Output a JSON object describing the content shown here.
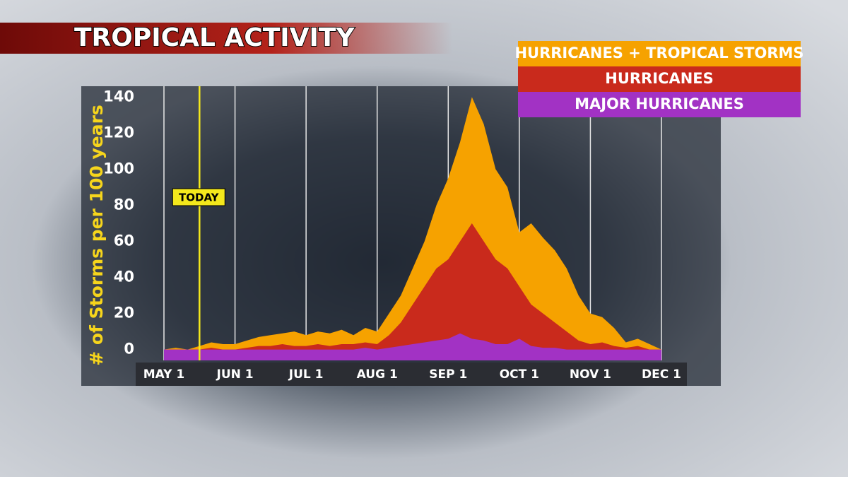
{
  "chart_data": {
    "type": "area",
    "title": "TROPICAL ACTIVITY",
    "y_label": "# of Storms per 100 years",
    "annotation": "TODAY",
    "categories": [
      "MAY 1",
      null,
      null,
      null,
      null,
      null,
      "JUN 1",
      null,
      null,
      null,
      null,
      null,
      "JUL 1",
      null,
      null,
      null,
      null,
      null,
      "AUG 1",
      null,
      null,
      null,
      null,
      null,
      "SEP 1",
      null,
      null,
      null,
      null,
      null,
      "OCT 1",
      null,
      null,
      null,
      null,
      null,
      "NOV 1",
      null,
      null,
      null,
      null,
      null,
      "DEC 1"
    ],
    "series": [
      {
        "name": "HURRICANES + TROPICAL STORMS",
        "color": "#f6a200",
        "values": [
          0,
          1,
          0,
          2,
          4,
          3,
          3,
          5,
          7,
          8,
          9,
          10,
          8,
          10,
          9,
          11,
          8,
          12,
          10,
          20,
          30,
          45,
          60,
          80,
          95,
          115,
          140,
          125,
          100,
          90,
          65,
          70,
          62,
          55,
          45,
          30,
          20,
          18,
          12,
          4,
          6,
          3,
          0
        ]
      },
      {
        "name": "HURRICANES",
        "color": "#c92a1c",
        "values": [
          0,
          0,
          0,
          0,
          1,
          0,
          0,
          1,
          2,
          2,
          3,
          2,
          2,
          3,
          2,
          3,
          3,
          4,
          3,
          8,
          15,
          25,
          35,
          45,
          50,
          60,
          70,
          60,
          50,
          45,
          35,
          25,
          20,
          15,
          10,
          5,
          3,
          4,
          2,
          1,
          2,
          0,
          0
        ]
      },
      {
        "name": "MAJOR HURRICANES",
        "color": "#a232c4",
        "values": [
          0,
          0,
          0,
          0,
          0,
          0,
          0,
          0,
          0,
          0,
          0,
          0,
          0,
          0,
          0,
          0,
          0,
          1,
          0,
          1,
          2,
          3,
          4,
          5,
          6,
          9,
          6,
          5,
          3,
          3,
          6,
          2,
          1,
          1,
          0,
          0,
          0,
          0,
          0,
          0,
          0,
          0,
          0
        ]
      }
    ],
    "ylim": [
      -6,
      146
    ],
    "yticks": [
      0,
      20,
      40,
      60,
      80,
      100,
      120,
      140
    ],
    "grid": true
  }
}
